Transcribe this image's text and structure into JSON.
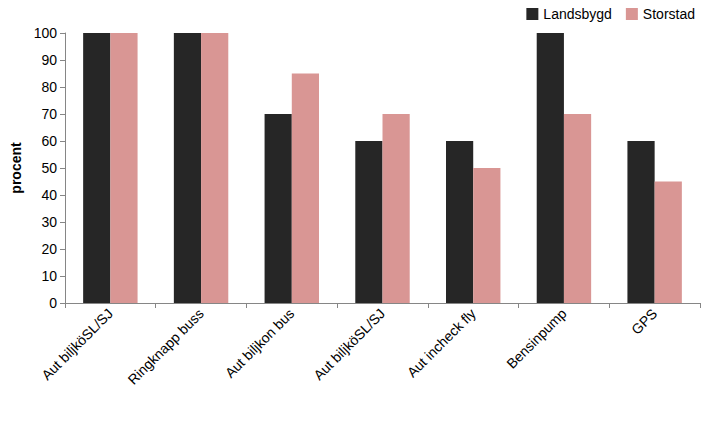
{
  "chart_data": {
    "type": "bar",
    "y_label": "procent",
    "categories": [
      "Aut biljköSL/SJ",
      "Ringknapp buss",
      "Aut biljkon bus",
      "Aut biljköSL/SJ",
      "Aut incheck fly",
      "Bensinpump",
      "GPS"
    ],
    "series": [
      {
        "name": "Landsbygd",
        "color": "#262626",
        "values": [
          100,
          100,
          70,
          60,
          60,
          100,
          60
        ]
      },
      {
        "name": "Storstad",
        "color": "#d99694",
        "values": [
          100,
          100,
          85,
          70,
          50,
          70,
          45
        ]
      }
    ],
    "ylim": [
      0,
      100
    ],
    "yticks": [
      0,
      10,
      20,
      30,
      40,
      50,
      60,
      70,
      80,
      90,
      100
    ],
    "grid": false,
    "legend": "upper right"
  }
}
